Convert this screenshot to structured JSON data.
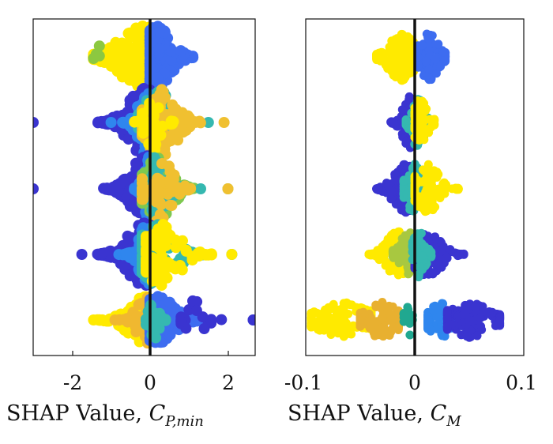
{
  "chart_data": [
    {
      "type": "scatter",
      "subtype": "shap-beeswarm",
      "xlabel": {
        "text": "SHAP Value, ",
        "symbol": "C",
        "subscript": "P,min"
      },
      "xlim": [
        -3,
        2.7
      ],
      "xticks": [
        -2,
        0,
        2
      ],
      "xtick_labels": [
        "-2",
        "0",
        "2"
      ],
      "zero_line": 0,
      "rows": [
        {
          "groups": [
            {
              "min": -1.45,
              "max": -0.02,
              "peak": -0.2,
              "spread": 0.75,
              "n": 300,
              "color": "#ffea00"
            },
            {
              "min": 0.0,
              "max": 1.1,
              "peak": 0.2,
              "spread": 0.45,
              "n": 220,
              "color": "#3d6cf0"
            },
            {
              "min": -1.45,
              "max": -1.3,
              "peak": -1.38,
              "spread": 0.08,
              "n": 4,
              "color": "#8cc840"
            }
          ]
        },
        {
          "groups": [
            {
              "min": -3.0,
              "max": 0.0,
              "peak": -0.15,
              "spread": 0.55,
              "n": 230,
              "color": "#3a34d0"
            },
            {
              "min": -1.0,
              "max": 0.3,
              "peak": -0.05,
              "spread": 0.3,
              "n": 90,
              "color": "#2f86ee"
            },
            {
              "min": -0.3,
              "max": 1.5,
              "peak": 0.2,
              "spread": 0.4,
              "n": 110,
              "color": "#35b8b0"
            },
            {
              "min": -0.2,
              "max": 1.9,
              "peak": 0.3,
              "spread": 0.5,
              "n": 110,
              "color": "#f0c030"
            },
            {
              "min": -0.4,
              "max": 0.6,
              "peak": 0.1,
              "spread": 0.25,
              "n": 40,
              "color": "#ffea00"
            }
          ]
        },
        {
          "groups": [
            {
              "min": -3.0,
              "max": 0.0,
              "peak": -0.1,
              "spread": 0.5,
              "n": 210,
              "color": "#3a34d0"
            },
            {
              "min": -0.4,
              "max": 0.4,
              "peak": 0.0,
              "spread": 0.2,
              "n": 100,
              "color": "#2f86ee"
            },
            {
              "min": -0.2,
              "max": 2.0,
              "peak": 0.2,
              "spread": 0.45,
              "n": 120,
              "color": "#7ec850"
            },
            {
              "min": -0.2,
              "max": 1.3,
              "peak": 0.2,
              "spread": 0.35,
              "n": 80,
              "color": "#35b8b0"
            },
            {
              "min": -0.2,
              "max": 2.0,
              "peak": 0.25,
              "spread": 0.4,
              "n": 60,
              "color": "#f0c030"
            }
          ]
        },
        {
          "groups": [
            {
              "min": -1.75,
              "max": 0.0,
              "peak": -0.15,
              "spread": 0.55,
              "n": 220,
              "color": "#3a34d0"
            },
            {
              "min": -0.8,
              "max": 0.2,
              "peak": -0.05,
              "spread": 0.3,
              "n": 90,
              "color": "#2f86ee"
            },
            {
              "min": -0.2,
              "max": 2.1,
              "peak": 0.2,
              "spread": 0.55,
              "n": 120,
              "color": "#35b8b0"
            },
            {
              "min": -0.1,
              "max": 2.1,
              "peak": 0.3,
              "spread": 0.6,
              "n": 100,
              "color": "#ffea00"
            }
          ]
        },
        {
          "groups": [
            {
              "min": -1.45,
              "max": 0.0,
              "peak": -0.15,
              "spread": 0.55,
              "n": 170,
              "color": "#ffea00"
            },
            {
              "min": -0.9,
              "max": 0.1,
              "peak": -0.05,
              "spread": 0.35,
              "n": 90,
              "color": "#f0b830"
            },
            {
              "min": 0.0,
              "max": 2.65,
              "peak": 0.2,
              "spread": 0.55,
              "n": 170,
              "color": "#3d6cf0"
            },
            {
              "min": 0.8,
              "max": 2.65,
              "peak": 1.2,
              "spread": 0.3,
              "n": 20,
              "color": "#3a34d0"
            },
            {
              "min": -0.1,
              "max": 0.4,
              "peak": 0.1,
              "spread": 0.15,
              "n": 30,
              "color": "#35b8b0"
            }
          ]
        }
      ]
    },
    {
      "type": "scatter",
      "subtype": "shap-beeswarm",
      "xlabel": {
        "text": "SHAP Value, ",
        "symbol": "C",
        "subscript": "M"
      },
      "xlim": [
        -0.1,
        0.1
      ],
      "xticks": [
        -0.1,
        0,
        0.1
      ],
      "xtick_labels": [
        "-0.1",
        "0",
        "0.1"
      ],
      "zero_line": 0,
      "rows": [
        {
          "groups": [
            {
              "min": -0.035,
              "max": -0.001,
              "peak": -0.012,
              "spread": 0.015,
              "n": 220,
              "color": "#ffea00"
            },
            {
              "min": 0.003,
              "max": 0.028,
              "peak": 0.013,
              "spread": 0.011,
              "n": 160,
              "color": "#3d6cf0"
            }
          ]
        },
        {
          "groups": [
            {
              "min": -0.022,
              "max": 0.0,
              "peak": -0.004,
              "spread": 0.009,
              "n": 120,
              "color": "#3a34d0"
            },
            {
              "min": -0.008,
              "max": 0.015,
              "peak": 0.003,
              "spread": 0.007,
              "n": 70,
              "color": "#35b8b0"
            },
            {
              "min": 0.0,
              "max": 0.018,
              "peak": 0.006,
              "spread": 0.008,
              "n": 60,
              "color": "#ffea00"
            }
          ]
        },
        {
          "groups": [
            {
              "min": -0.035,
              "max": 0.0,
              "peak": -0.008,
              "spread": 0.014,
              "n": 150,
              "color": "#3a34d0"
            },
            {
              "min": -0.01,
              "max": 0.012,
              "peak": 0.0,
              "spread": 0.01,
              "n": 90,
              "color": "#35b8b0"
            },
            {
              "min": 0.0,
              "max": 0.04,
              "peak": 0.012,
              "spread": 0.014,
              "n": 110,
              "color": "#ffea00"
            }
          ]
        },
        {
          "groups": [
            {
              "min": -0.042,
              "max": -0.005,
              "peak": -0.015,
              "spread": 0.014,
              "n": 140,
              "color": "#ffea00"
            },
            {
              "min": -0.02,
              "max": 0.005,
              "peak": -0.006,
              "spread": 0.01,
              "n": 100,
              "color": "#a8c840"
            },
            {
              "min": 0.0,
              "max": 0.045,
              "peak": 0.012,
              "spread": 0.016,
              "n": 160,
              "color": "#3a34d0"
            },
            {
              "min": -0.002,
              "max": 0.015,
              "peak": 0.004,
              "spread": 0.007,
              "n": 50,
              "color": "#35b8b0"
            }
          ]
        },
        {
          "groups": [
            {
              "min": -0.095,
              "max": -0.04,
              "peak": -0.065,
              "spread": 0.03,
              "n": 180,
              "color": "#ffea00"
            },
            {
              "min": -0.05,
              "max": -0.015,
              "peak": -0.03,
              "spread": 0.02,
              "n": 120,
              "color": "#e8b030"
            },
            {
              "min": -0.01,
              "max": -0.002,
              "peak": -0.006,
              "spread": 0.005,
              "n": 12,
              "color": "#20a890"
            },
            {
              "min": 0.012,
              "max": 0.04,
              "peak": 0.025,
              "spread": 0.015,
              "n": 100,
              "color": "#2f86ee"
            },
            {
              "min": 0.03,
              "max": 0.078,
              "peak": 0.05,
              "spread": 0.025,
              "n": 170,
              "color": "#3a34d0"
            }
          ]
        }
      ]
    }
  ]
}
